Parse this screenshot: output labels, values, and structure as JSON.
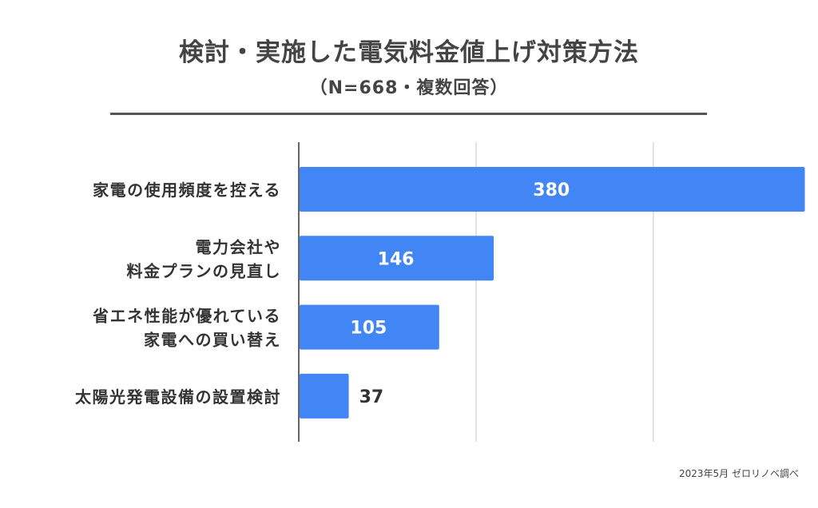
{
  "header": {
    "title": "検討・実施した電気料金値上げ対策方法",
    "subtitle": "（N=668・複数回答）"
  },
  "footer": {
    "source": "2023年5月 ゼロリノベ調べ"
  },
  "colors": {
    "bar": "#4285f4",
    "inside_label": "#ffffff",
    "outside_label": "#333333",
    "grid": "#d9d9d9",
    "axis": "#333333",
    "divider": "#555555"
  },
  "chart_data": {
    "type": "bar",
    "orientation": "horizontal",
    "categories": [
      [
        "家電の使用頻度を控える"
      ],
      [
        "電力会社や",
        "料金プランの見直し"
      ],
      [
        "省エネ性能が優れている",
        "家電への買い替え"
      ],
      [
        "太陽光発電設備の設置検討"
      ]
    ],
    "values": [
      380,
      146,
      105,
      37
    ],
    "data_labels": [
      "380",
      "146",
      "105",
      "37"
    ],
    "xlim": [
      0,
      400
    ],
    "grid": true,
    "legend": "none"
  }
}
